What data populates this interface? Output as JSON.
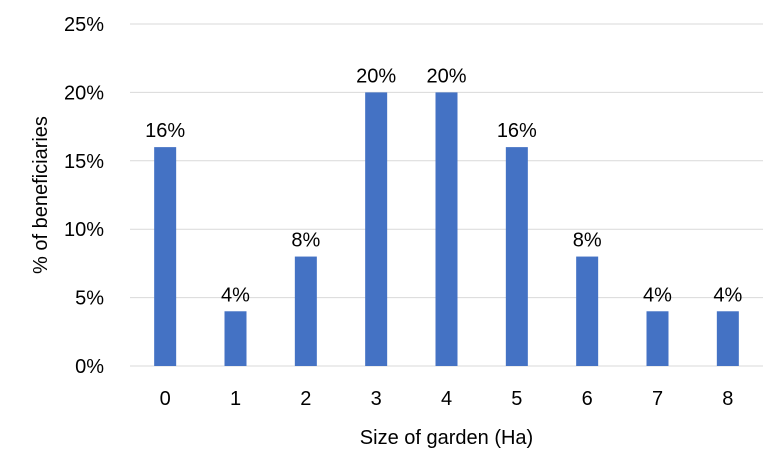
{
  "chart_data": {
    "type": "bar",
    "title": "",
    "xlabel": "Size of garden (Ha)",
    "ylabel": "% of beneficiaries",
    "categories": [
      "0",
      "1",
      "2",
      "3",
      "4",
      "5",
      "6",
      "7",
      "8"
    ],
    "values": [
      16,
      4,
      8,
      20,
      20,
      16,
      8,
      4,
      4
    ],
    "data_labels": [
      "16%",
      "4%",
      "8%",
      "20%",
      "20%",
      "16%",
      "8%",
      "4%",
      "4%"
    ],
    "ylim": [
      0,
      25
    ],
    "yticks": [
      0,
      5,
      10,
      15,
      20,
      25
    ],
    "ytick_labels": [
      "0%",
      "5%",
      "10%",
      "15%",
      "20%",
      "25%"
    ],
    "grid": "horizontal",
    "legend": "none",
    "colors": {
      "bar": "#4472C4",
      "grid": "#D9D9D9",
      "axis": "#D9D9D9"
    }
  }
}
